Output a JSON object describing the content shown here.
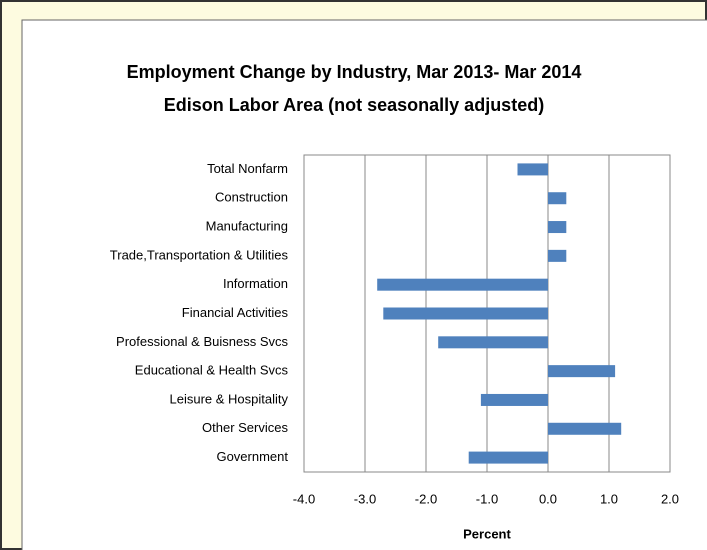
{
  "chart_data": {
    "type": "barh",
    "title": "Employment Change by Industry, Mar 2013- Mar 2014",
    "subtitle": "Edison Labor Area (not seasonally adjusted)",
    "x_label": "Percent",
    "categories": [
      "Total Nonfarm",
      "Construction",
      "Manufacturing",
      "Trade,Transportation & Utilities",
      "Information",
      "Financial Activities",
      "Professional & Buisness Svcs",
      "Educational & Health Svcs",
      "Leisure & Hospitality",
      "Other Services",
      "Government"
    ],
    "values": [
      -0.5,
      0.3,
      0.3,
      0.3,
      -2.8,
      -2.7,
      -1.8,
      1.1,
      -1.1,
      1.2,
      -1.3
    ],
    "color": "#4f81bd",
    "xlim": [
      -4,
      2
    ],
    "xticks": [
      {
        "value": -4,
        "label": "-4.0"
      },
      {
        "value": -3,
        "label": "-3.0"
      },
      {
        "value": -2,
        "label": "-2.0"
      },
      {
        "value": -1,
        "label": "-1.0"
      },
      {
        "value": 0,
        "label": "0.0"
      },
      {
        "value": 1,
        "label": "1.0"
      },
      {
        "value": 2,
        "label": "2.0"
      }
    ],
    "grid": true
  }
}
